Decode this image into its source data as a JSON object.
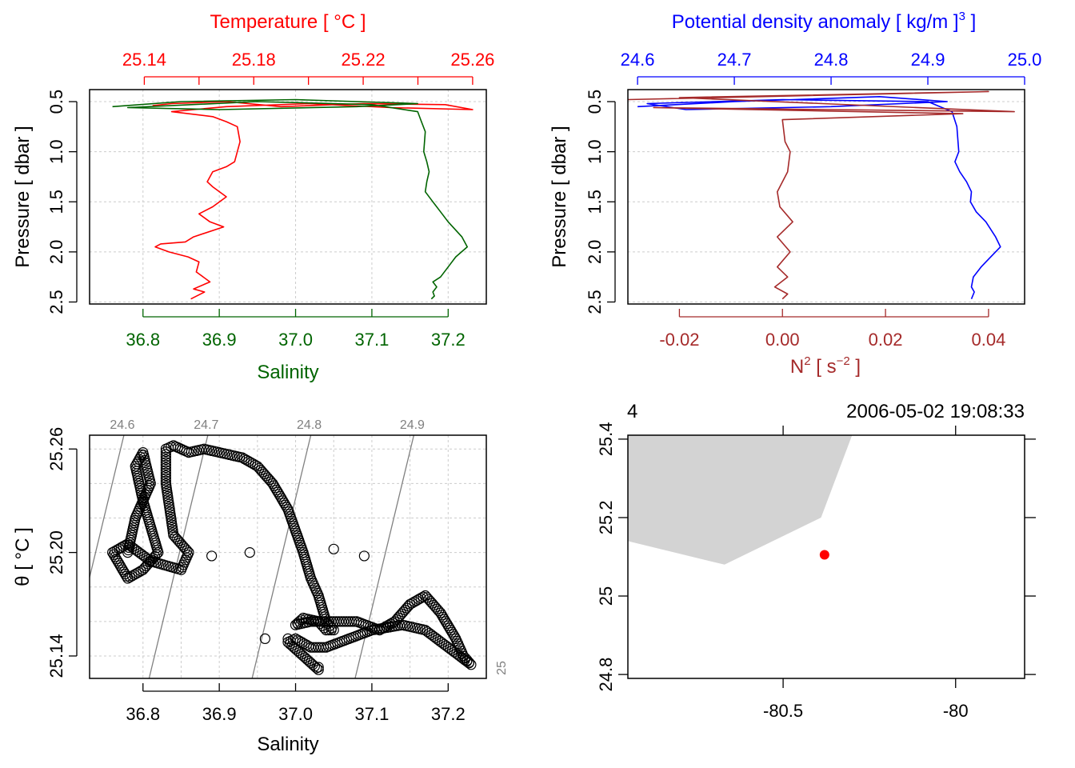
{
  "chart_data": [
    {
      "type": "line",
      "panel": "top-left",
      "top_axis": {
        "label": "Temperature [ °C ]",
        "ticks": [
          "25.14",
          "25.18",
          "25.22",
          "25.26"
        ],
        "color": "#ff0000",
        "range": [
          25.12,
          25.265
        ]
      },
      "bottom_axis": {
        "label": "Salinity",
        "ticks": [
          "36.8",
          "36.9",
          "37.0",
          "37.1",
          "37.2"
        ],
        "color": "#006400",
        "range": [
          36.73,
          37.25
        ]
      },
      "y_axis": {
        "label": "Pressure [ dbar ]",
        "ticks": [
          "0.5",
          "1.0",
          "1.5",
          "2.0",
          "2.5"
        ],
        "range": [
          0.38,
          2.52
        ],
        "inverted": true
      },
      "grid": true,
      "series": [
        {
          "color": "#ff0000",
          "x": [
            25.143,
            25.15,
            25.17,
            25.19,
            25.22,
            25.25,
            25.26,
            25.23,
            25.2,
            25.17,
            25.15,
            25.165,
            25.17,
            25.174,
            25.175,
            25.174,
            25.173,
            25.17,
            25.165,
            25.163,
            25.165,
            25.17,
            25.165,
            25.16,
            25.164,
            25.169,
            25.158,
            25.155,
            25.146,
            25.144,
            25.149,
            25.156,
            25.16,
            25.159,
            25.164,
            25.158,
            25.162,
            25.157
          ],
          "y": [
            0.54,
            0.52,
            0.5,
            0.55,
            0.52,
            0.53,
            0.58,
            0.56,
            0.52,
            0.55,
            0.6,
            0.65,
            0.7,
            0.75,
            0.9,
            1.0,
            1.1,
            1.15,
            1.2,
            1.3,
            1.35,
            1.45,
            1.55,
            1.62,
            1.7,
            1.75,
            1.85,
            1.9,
            1.92,
            1.95,
            2.0,
            2.05,
            2.1,
            2.2,
            2.3,
            2.37,
            2.4,
            2.47
          ]
        },
        {
          "color": "#006400",
          "x": [
            36.76,
            36.85,
            37.0,
            37.16,
            37.08,
            36.9,
            36.78,
            36.95,
            37.1,
            37.16,
            37.165,
            37.17,
            37.168,
            37.172,
            37.175,
            37.172,
            37.17,
            37.18,
            37.19,
            37.2,
            37.218,
            37.225,
            37.21,
            37.2,
            37.19,
            37.18,
            37.185,
            37.18,
            37.182,
            37.178
          ],
          "y": [
            0.55,
            0.5,
            0.48,
            0.52,
            0.55,
            0.58,
            0.56,
            0.5,
            0.53,
            0.6,
            0.7,
            0.8,
            1.0,
            1.1,
            1.2,
            1.3,
            1.4,
            1.5,
            1.6,
            1.7,
            1.85,
            1.95,
            2.05,
            2.15,
            2.25,
            2.3,
            2.35,
            2.4,
            2.44,
            2.47
          ]
        }
      ]
    },
    {
      "type": "line",
      "panel": "top-right",
      "top_axis": {
        "label": "Potential density anomaly [ kg/m ]",
        "label_superscript": "3",
        "ticks": [
          "24.6",
          "24.7",
          "24.8",
          "24.9",
          "25.0"
        ],
        "color": "#0000ff",
        "range": [
          24.59,
          25.0
        ]
      },
      "bottom_axis": {
        "label": "N [ s ]",
        "label_superscripts": [
          "2",
          "−2"
        ],
        "ticks": [
          "-0.02",
          "0.00",
          "0.02",
          "0.04"
        ],
        "color": "#a52a2a",
        "range": [
          -0.03,
          0.047
        ]
      },
      "y_axis": {
        "label": "Pressure [ dbar ]",
        "ticks": [
          "0.5",
          "1.0",
          "1.5",
          "2.0",
          "2.5"
        ],
        "range": [
          0.38,
          2.52
        ],
        "inverted": true
      },
      "grid": true,
      "series": [
        {
          "color": "#0000ff",
          "x": [
            24.6,
            24.7,
            24.85,
            24.92,
            24.8,
            24.65,
            24.61,
            24.75,
            24.9,
            24.925,
            24.93,
            24.932,
            24.928,
            24.933,
            24.94,
            24.945,
            24.944,
            24.95,
            24.96,
            24.97,
            24.975,
            24.965,
            24.955,
            24.947,
            24.945,
            24.948,
            24.945
          ],
          "y": [
            0.55,
            0.5,
            0.45,
            0.5,
            0.55,
            0.58,
            0.52,
            0.48,
            0.5,
            0.6,
            0.75,
            1.0,
            1.1,
            1.2,
            1.3,
            1.4,
            1.5,
            1.6,
            1.7,
            1.85,
            1.95,
            2.05,
            2.15,
            2.25,
            2.35,
            2.4,
            2.47
          ]
        },
        {
          "color": "#a52a2a",
          "x": [
            -0.03,
            0.04,
            -0.02,
            0.045,
            -0.025,
            0.035,
            0.0,
            0.0005,
            0.0015,
            0.001,
            -0.001,
            -0.0005,
            0.002,
            -0.001,
            0.0015,
            -0.001,
            0.001,
            -0.0015,
            0.001,
            0.0
          ],
          "y": [
            0.48,
            0.4,
            0.46,
            0.6,
            0.56,
            0.62,
            0.68,
            0.9,
            1.0,
            1.2,
            1.4,
            1.55,
            1.7,
            1.85,
            2.0,
            2.15,
            2.25,
            2.35,
            2.42,
            2.47
          ]
        }
      ]
    },
    {
      "type": "scatter",
      "panel": "bottom-left",
      "x_axis": {
        "label": "Salinity",
        "ticks": [
          "36.8",
          "36.9",
          "37.0",
          "37.1",
          "37.2"
        ],
        "range": [
          36.73,
          37.25
        ]
      },
      "y_axis": {
        "label": "θ [ °C ]",
        "ticks": [
          "25.14",
          "25.20",
          "25.26"
        ],
        "range": [
          25.127,
          25.268
        ]
      },
      "grid": true,
      "isopycnals": {
        "labels": [
          "24.6",
          "24.7",
          "24.8",
          "24.9",
          "25"
        ],
        "color": "#808080"
      },
      "path": {
        "x": [
          36.78,
          36.79,
          36.81,
          36.8,
          36.79,
          36.8,
          36.81,
          36.82,
          36.8,
          36.78,
          36.76,
          36.78,
          36.81,
          36.85,
          36.86,
          36.84,
          36.83,
          36.83,
          36.84,
          36.86,
          36.88,
          36.9,
          36.93,
          36.95,
          36.97,
          36.99,
          37.01,
          37.02,
          37.03,
          37.04,
          37.05,
          37.04,
          37.03,
          37.01,
          37.0,
          37.02,
          37.05,
          37.08,
          37.11,
          37.13,
          37.15,
          37.17,
          37.19,
          37.21,
          37.22,
          37.23,
          37.2,
          37.17,
          37.14,
          37.1,
          37.07,
          37.04,
          37.02,
          37.0,
          36.99,
          37.01,
          37.03,
          37.03
        ],
        "y": [
          25.2,
          25.22,
          25.24,
          25.258,
          25.25,
          25.23,
          25.215,
          25.2,
          25.19,
          25.185,
          25.2,
          25.205,
          25.195,
          25.19,
          25.2,
          25.21,
          25.24,
          25.26,
          25.262,
          25.258,
          25.26,
          25.258,
          25.255,
          25.25,
          25.24,
          25.225,
          25.2,
          25.185,
          25.175,
          25.16,
          25.155,
          25.155,
          25.16,
          25.162,
          25.158,
          25.16,
          25.16,
          25.16,
          25.155,
          25.16,
          25.17,
          25.175,
          25.165,
          25.15,
          25.14,
          25.135,
          25.145,
          25.155,
          25.158,
          25.155,
          25.15,
          25.145,
          25.145,
          25.15,
          25.148,
          25.14,
          25.132,
          25.135
        ]
      },
      "extra_points": [
        {
          "x": 36.94,
          "y": 25.2
        },
        {
          "x": 37.05,
          "y": 25.202
        },
        {
          "x": 37.09,
          "y": 25.198
        },
        {
          "x": 36.89,
          "y": 25.198
        },
        {
          "x": 36.96,
          "y": 25.15
        },
        {
          "x": 36.99,
          "y": 25.15
        }
      ]
    },
    {
      "type": "map",
      "panel": "bottom-right",
      "x_axis": {
        "ticks": [
          "-80.5",
          "-80"
        ],
        "range": [
          -80.95,
          -79.8
        ]
      },
      "y_axis": {
        "ticks": [
          "24.8",
          "25",
          "25.2",
          "25.4"
        ],
        "range": [
          24.79,
          25.41
        ]
      },
      "station_label": "4",
      "time_label": "2006-05-02 19:08:33",
      "land": {
        "color": "#d3d3d3",
        "lon": [
          -80.95,
          -80.3,
          -80.39,
          -80.67,
          -80.95
        ],
        "lat": [
          25.41,
          25.41,
          25.2,
          25.08,
          25.14
        ]
      },
      "station": {
        "lon": -80.38,
        "lat": 25.105,
        "color": "#ff0000"
      }
    }
  ]
}
